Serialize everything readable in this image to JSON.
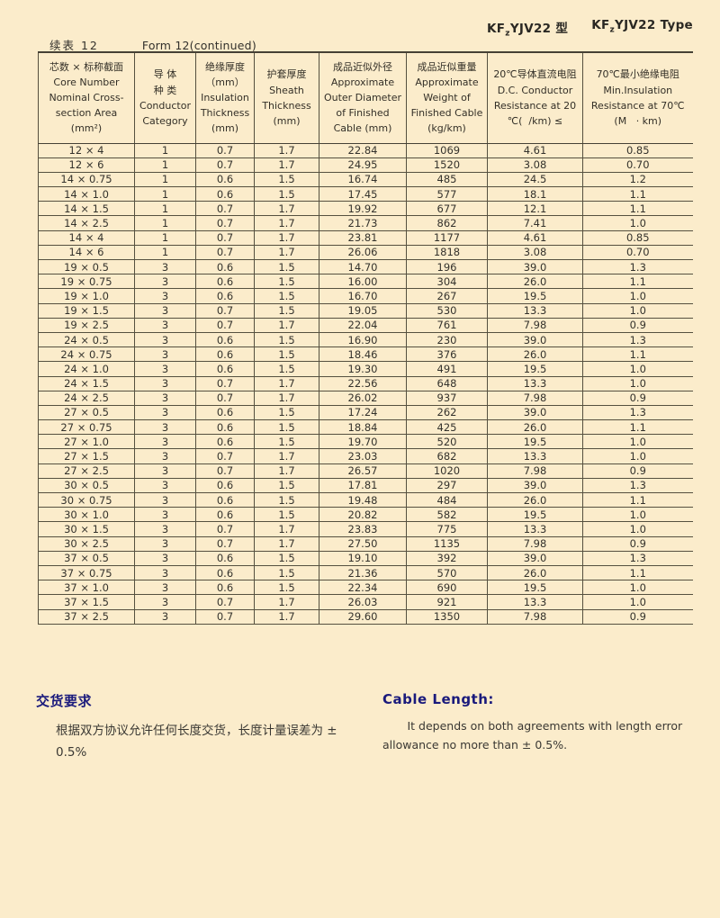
{
  "colors": {
    "background": "#fbeccb",
    "text": "#3a3833",
    "heading_blue": "#1a1a7c",
    "table_border": "#55503f"
  },
  "header": {
    "type_title_cn": {
      "pre": "KF",
      "sub": "z",
      "post": "YJV22 型"
    },
    "type_title_en": {
      "pre": "KF",
      "sub": "z",
      "post": "YJV22 Type"
    },
    "continued_cn": "续表 12",
    "continued_en": "Form 12(continued)"
  },
  "table": {
    "columns": [
      "芯数 × 标称截面\nCore Number\nNominal Cross-\nsection Area\n(mm²)",
      "导 体\n种 类\nConductor\nCategory",
      "绝缘厚度\n（mm）\nInsulation\nThickness\n(mm)",
      "护套厚度\nSheath\nThickness\n(mm)",
      "成品近似外径\nApproximate\nOuter Diameter\nof Finished\nCable (mm)",
      "成品近似重量\nApproximate\nWeight of\nFinished Cable\n(kg/km)",
      "20℃导体直流电阻\nD.C. Conductor\nResistance at 20\n℃(  /km) ≤",
      "70℃最小绝缘电阻\nMin.Insulation\nResistance at 70℃\n(M   · km)"
    ],
    "rows": [
      [
        "12 × 4",
        "1",
        "0.7",
        "1.7",
        "22.84",
        "1069",
        "4.61",
        "0.85"
      ],
      [
        "12 × 6",
        "1",
        "0.7",
        "1.7",
        "24.95",
        "1520",
        "3.08",
        "0.70"
      ],
      [
        "14 × 0.75",
        "1",
        "0.6",
        "1.5",
        "16.74",
        "485",
        "24.5",
        "1.2"
      ],
      [
        "14 × 1.0",
        "1",
        "0.6",
        "1.5",
        "17.45",
        "577",
        "18.1",
        "1.1"
      ],
      [
        "14 × 1.5",
        "1",
        "0.7",
        "1.7",
        "19.92",
        "677",
        "12.1",
        "1.1"
      ],
      [
        "14 × 2.5",
        "1",
        "0.7",
        "1.7",
        "21.73",
        "862",
        "7.41",
        "1.0"
      ],
      [
        "14 × 4",
        "1",
        "0.7",
        "1.7",
        "23.81",
        "1177",
        "4.61",
        "0.85"
      ],
      [
        "14 × 6",
        "1",
        "0.7",
        "1.7",
        "26.06",
        "1818",
        "3.08",
        "0.70"
      ],
      [
        "19 × 0.5",
        "3",
        "0.6",
        "1.5",
        "14.70",
        "196",
        "39.0",
        "1.3"
      ],
      [
        "19 × 0.75",
        "3",
        "0.6",
        "1.5",
        "16.00",
        "304",
        "26.0",
        "1.1"
      ],
      [
        "19 × 1.0",
        "3",
        "0.6",
        "1.5",
        "16.70",
        "267",
        "19.5",
        "1.0"
      ],
      [
        "19 × 1.5",
        "3",
        "0.7",
        "1.5",
        "19.05",
        "530",
        "13.3",
        "1.0"
      ],
      [
        "19 × 2.5",
        "3",
        "0.7",
        "1.7",
        "22.04",
        "761",
        "7.98",
        "0.9"
      ],
      [
        "24 × 0.5",
        "3",
        "0.6",
        "1.5",
        "16.90",
        "230",
        "39.0",
        "1.3"
      ],
      [
        "24 × 0.75",
        "3",
        "0.6",
        "1.5",
        "18.46",
        "376",
        "26.0",
        "1.1"
      ],
      [
        "24 × 1.0",
        "3",
        "0.6",
        "1.5",
        "19.30",
        "491",
        "19.5",
        "1.0"
      ],
      [
        "24 × 1.5",
        "3",
        "0.7",
        "1.7",
        "22.56",
        "648",
        "13.3",
        "1.0"
      ],
      [
        "24 × 2.5",
        "3",
        "0.7",
        "1.7",
        "26.02",
        "937",
        "7.98",
        "0.9"
      ],
      [
        "27 × 0.5",
        "3",
        "0.6",
        "1.5",
        "17.24",
        "262",
        "39.0",
        "1.3"
      ],
      [
        "27 × 0.75",
        "3",
        "0.6",
        "1.5",
        "18.84",
        "425",
        "26.0",
        "1.1"
      ],
      [
        "27 × 1.0",
        "3",
        "0.6",
        "1.5",
        "19.70",
        "520",
        "19.5",
        "1.0"
      ],
      [
        "27 × 1.5",
        "3",
        "0.7",
        "1.7",
        "23.03",
        "682",
        "13.3",
        "1.0"
      ],
      [
        "27 × 2.5",
        "3",
        "0.7",
        "1.7",
        "26.57",
        "1020",
        "7.98",
        "0.9"
      ],
      [
        "30 × 0.5",
        "3",
        "0.6",
        "1.5",
        "17.81",
        "297",
        "39.0",
        "1.3"
      ],
      [
        "30 × 0.75",
        "3",
        "0.6",
        "1.5",
        "19.48",
        "484",
        "26.0",
        "1.1"
      ],
      [
        "30 × 1.0",
        "3",
        "0.6",
        "1.5",
        "20.82",
        "582",
        "19.5",
        "1.0"
      ],
      [
        "30 × 1.5",
        "3",
        "0.7",
        "1.7",
        "23.83",
        "775",
        "13.3",
        "1.0"
      ],
      [
        "30 × 2.5",
        "3",
        "0.7",
        "1.7",
        "27.50",
        "1135",
        "7.98",
        "0.9"
      ],
      [
        "37 × 0.5",
        "3",
        "0.6",
        "1.5",
        "19.10",
        "392",
        "39.0",
        "1.3"
      ],
      [
        "37 × 0.75",
        "3",
        "0.6",
        "1.5",
        "21.36",
        "570",
        "26.0",
        "1.1"
      ],
      [
        "37 × 1.0",
        "3",
        "0.6",
        "1.5",
        "22.34",
        "690",
        "19.5",
        "1.0"
      ],
      [
        "37 × 1.5",
        "3",
        "0.7",
        "1.7",
        "26.03",
        "921",
        "13.3",
        "1.0"
      ],
      [
        "37 × 2.5",
        "3",
        "0.7",
        "1.7",
        "29.60",
        "1350",
        "7.98",
        "0.9"
      ]
    ]
  },
  "footer": {
    "delivery_cn": {
      "title": "交货要求",
      "body": "根据双方协议允许任何长度交货，长度计量误差为 ± 0.5%"
    },
    "delivery_en": {
      "title": "Cable Length:",
      "body": "It depends on both agreements with length error allowance no more than  ± 0.5%."
    }
  }
}
